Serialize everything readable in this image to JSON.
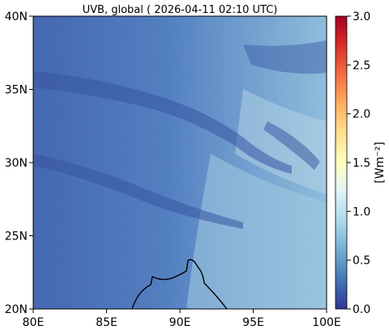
{
  "title": "UVB, global ( 2026-04-11 02:10 UTC)",
  "map": {
    "lon_ticks": [
      {
        "value": 80,
        "label": "80E"
      },
      {
        "value": 85,
        "label": "85E"
      },
      {
        "value": 90,
        "label": "90E"
      },
      {
        "value": 95,
        "label": "95E"
      },
      {
        "value": 100,
        "label": "100E"
      }
    ],
    "lat_ticks": [
      {
        "value": 20,
        "label": "20N"
      },
      {
        "value": 25,
        "label": "25N"
      },
      {
        "value": 30,
        "label": "30N"
      },
      {
        "value": 35,
        "label": "35N"
      },
      {
        "value": 40,
        "label": "40N"
      }
    ],
    "lon_range": [
      80,
      100
    ],
    "lat_range": [
      20,
      40
    ],
    "field": "UVB irradiance",
    "colormap": "RdYlBu_r"
  },
  "colorbar": {
    "label": "[Wm⁻²]",
    "range": [
      0.0,
      3.0
    ],
    "ticks": [
      {
        "value": 0.0,
        "label": "0.0"
      },
      {
        "value": 0.5,
        "label": "0.5"
      },
      {
        "value": 1.0,
        "label": "1.0"
      },
      {
        "value": 1.5,
        "label": "1.5"
      },
      {
        "value": 2.0,
        "label": "2.0"
      },
      {
        "value": 2.5,
        "label": "2.5"
      },
      {
        "value": 3.0,
        "label": "3.0"
      }
    ],
    "colors": [
      "#313695",
      "#4575b4",
      "#74add1",
      "#abd9e9",
      "#e0f3f8",
      "#ffffbf",
      "#fee090",
      "#fdae61",
      "#f46d43",
      "#d73027",
      "#a50026"
    ]
  }
}
